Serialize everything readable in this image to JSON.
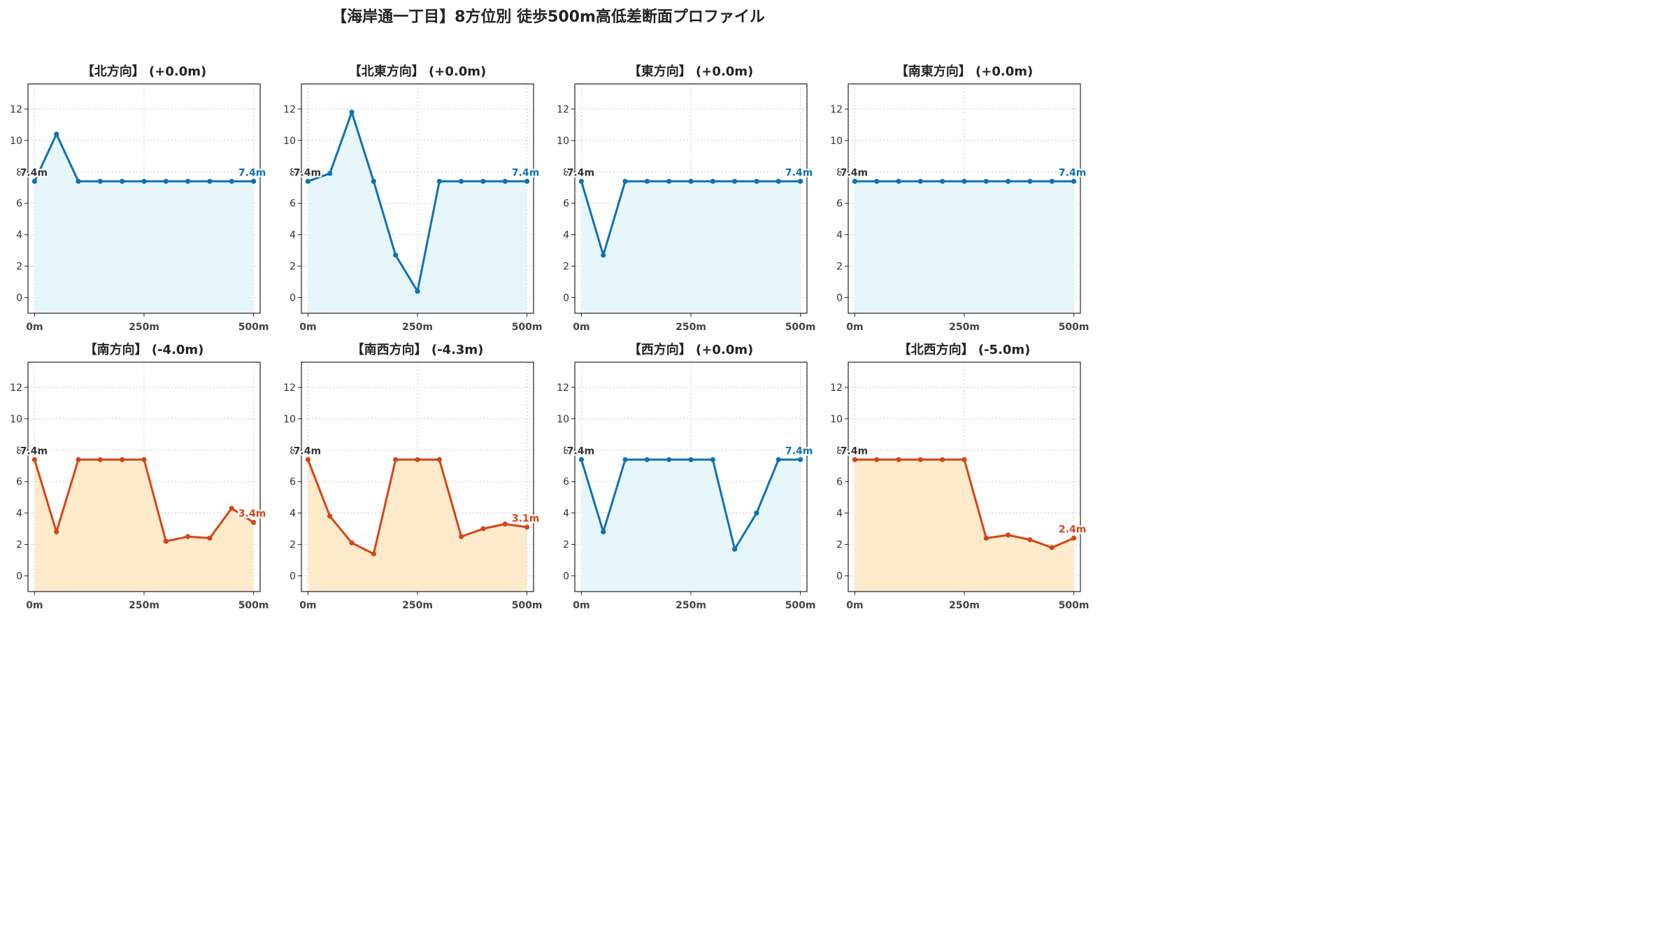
{
  "title": "【海岸通一丁目】8方位別 徒歩500m高低差断面プロファイル",
  "colors": {
    "flat_line": "#0E72B5",
    "flat_fill": "#E7F6FB",
    "down_line": "#D64517",
    "down_fill": "#FDEBCC",
    "start_label": "#333333"
  },
  "chart_data": [
    {
      "type": "line",
      "title": "【北方向】 (+0.0m)",
      "x": [
        0,
        50,
        100,
        150,
        200,
        250,
        300,
        350,
        400,
        450,
        500
      ],
      "values": [
        7.4,
        10.4,
        7.4,
        7.4,
        7.4,
        7.4,
        7.4,
        7.4,
        7.4,
        7.4,
        7.4
      ],
      "trend": "flat",
      "start_label": "7.4m",
      "end_label": "7.4m",
      "xticks": [
        "0m",
        "250m",
        "500m"
      ],
      "yticks": [
        0,
        2,
        4,
        6,
        8,
        10,
        12
      ],
      "ylim": [
        -1,
        13.6
      ],
      "xlim": [
        -15,
        515
      ]
    },
    {
      "type": "line",
      "title": "【北東方向】 (+0.0m)",
      "x": [
        0,
        50,
        100,
        150,
        200,
        250,
        300,
        350,
        400,
        450,
        500
      ],
      "values": [
        7.4,
        7.9,
        11.8,
        7.4,
        2.7,
        0.4,
        7.4,
        7.4,
        7.4,
        7.4,
        7.4
      ],
      "trend": "flat",
      "start_label": "7.4m",
      "end_label": "7.4m",
      "xticks": [
        "0m",
        "250m",
        "500m"
      ],
      "yticks": [
        0,
        2,
        4,
        6,
        8,
        10,
        12
      ],
      "ylim": [
        -1,
        13.6
      ],
      "xlim": [
        -15,
        515
      ]
    },
    {
      "type": "line",
      "title": "【東方向】 (+0.0m)",
      "x": [
        0,
        50,
        100,
        150,
        200,
        250,
        300,
        350,
        400,
        450,
        500
      ],
      "values": [
        7.4,
        2.7,
        7.4,
        7.4,
        7.4,
        7.4,
        7.4,
        7.4,
        7.4,
        7.4,
        7.4
      ],
      "trend": "flat",
      "start_label": "7.4m",
      "end_label": "7.4m",
      "xticks": [
        "0m",
        "250m",
        "500m"
      ],
      "yticks": [
        0,
        2,
        4,
        6,
        8,
        10,
        12
      ],
      "ylim": [
        -1,
        13.6
      ],
      "xlim": [
        -15,
        515
      ]
    },
    {
      "type": "line",
      "title": "【南東方向】 (+0.0m)",
      "x": [
        0,
        50,
        100,
        150,
        200,
        250,
        300,
        350,
        400,
        450,
        500
      ],
      "values": [
        7.4,
        7.4,
        7.4,
        7.4,
        7.4,
        7.4,
        7.4,
        7.4,
        7.4,
        7.4,
        7.4
      ],
      "trend": "flat",
      "start_label": "7.4m",
      "end_label": "7.4m",
      "xticks": [
        "0m",
        "250m",
        "500m"
      ],
      "yticks": [
        0,
        2,
        4,
        6,
        8,
        10,
        12
      ],
      "ylim": [
        -1,
        13.6
      ],
      "xlim": [
        -15,
        515
      ]
    },
    {
      "type": "line",
      "title": "【南方向】 (-4.0m)",
      "x": [
        0,
        50,
        100,
        150,
        200,
        250,
        300,
        350,
        400,
        450,
        500
      ],
      "values": [
        7.4,
        2.8,
        7.4,
        7.4,
        7.4,
        7.4,
        2.2,
        2.5,
        2.4,
        4.3,
        3.4
      ],
      "trend": "down",
      "start_label": "7.4m",
      "end_label": "3.4m",
      "xticks": [
        "0m",
        "250m",
        "500m"
      ],
      "yticks": [
        0,
        2,
        4,
        6,
        8,
        10,
        12
      ],
      "ylim": [
        -1,
        13.6
      ],
      "xlim": [
        -15,
        515
      ]
    },
    {
      "type": "line",
      "title": "【南西方向】 (-4.3m)",
      "x": [
        0,
        50,
        100,
        150,
        200,
        250,
        300,
        350,
        400,
        450,
        500
      ],
      "values": [
        7.4,
        3.8,
        2.1,
        1.4,
        7.4,
        7.4,
        7.4,
        2.5,
        3.0,
        3.3,
        3.1
      ],
      "trend": "down",
      "start_label": "7.4m",
      "end_label": "3.1m",
      "xticks": [
        "0m",
        "250m",
        "500m"
      ],
      "yticks": [
        0,
        2,
        4,
        6,
        8,
        10,
        12
      ],
      "ylim": [
        -1,
        13.6
      ],
      "xlim": [
        -15,
        515
      ]
    },
    {
      "type": "line",
      "title": "【西方向】 (+0.0m)",
      "x": [
        0,
        50,
        100,
        150,
        200,
        250,
        300,
        350,
        400,
        450,
        500
      ],
      "values": [
        7.4,
        2.8,
        7.4,
        7.4,
        7.4,
        7.4,
        7.4,
        1.7,
        4.0,
        7.4,
        7.4
      ],
      "trend": "flat",
      "start_label": "7.4m",
      "end_label": "7.4m",
      "xticks": [
        "0m",
        "250m",
        "500m"
      ],
      "yticks": [
        0,
        2,
        4,
        6,
        8,
        10,
        12
      ],
      "ylim": [
        -1,
        13.6
      ],
      "xlim": [
        -15,
        515
      ]
    },
    {
      "type": "line",
      "title": "【北西方向】 (-5.0m)",
      "x": [
        0,
        50,
        100,
        150,
        200,
        250,
        300,
        350,
        400,
        450,
        500
      ],
      "values": [
        7.4,
        7.4,
        7.4,
        7.4,
        7.4,
        7.4,
        2.4,
        2.6,
        2.3,
        1.8,
        2.4
      ],
      "trend": "down",
      "start_label": "7.4m",
      "end_label": "2.4m",
      "xticks": [
        "0m",
        "250m",
        "500m"
      ],
      "yticks": [
        0,
        2,
        4,
        6,
        8,
        10,
        12
      ],
      "ylim": [
        -1,
        13.6
      ],
      "xlim": [
        -15,
        515
      ]
    }
  ]
}
